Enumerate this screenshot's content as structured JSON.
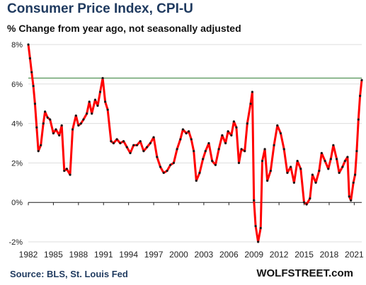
{
  "header": {
    "title": "Consumer Price Index, CPI-U",
    "subtitle": "% Change from year ago, not seasonally adjusted"
  },
  "footer": {
    "source": "Source: BLS, St. Louis Fed",
    "brand": "WOLFSTREET.com"
  },
  "colors": {
    "line": "#ff0000",
    "markers": "#1a1a1a",
    "reference_line": "#2e7d32",
    "gridline": "#dddddd",
    "title": "#1f3a5f"
  },
  "chart_data": {
    "type": "line",
    "title": "Consumer Price Index, CPI-U",
    "subtitle": "% Change from year ago, not seasonally adjusted",
    "xlabel": "",
    "ylabel": "",
    "xlim": [
      1982.0,
      2021.9
    ],
    "ylim": [
      -2,
      8
    ],
    "y_ticks": [
      8,
      6,
      4,
      2,
      0,
      -2
    ],
    "y_tick_labels": [
      "8%",
      "6%",
      "4%",
      "2%",
      "0%",
      "-2%"
    ],
    "x_ticks": [
      1982,
      1985,
      1988,
      1991,
      1994,
      1997,
      2000,
      2003,
      2006,
      2009,
      2012,
      2015,
      2018,
      2021
    ],
    "x_tick_labels": [
      "1982",
      "1985",
      "1988",
      "1991",
      "1994",
      "1997",
      "2000",
      "2003",
      "2006",
      "2009",
      "2012",
      "2015",
      "2018",
      "2021"
    ],
    "grid": "horizontal",
    "reference_line_y": 6.3,
    "series": [
      {
        "x": [
          1982.0,
          1982.2,
          1982.4,
          1982.6,
          1982.8,
          1983.0,
          1983.2,
          1983.5,
          1983.8,
          1984.0,
          1984.3,
          1984.6,
          1985.0,
          1985.3,
          1985.7,
          1986.0,
          1986.3,
          1986.6,
          1987.0,
          1987.3,
          1987.7,
          1988.0,
          1988.3,
          1988.6,
          1989.0,
          1989.3,
          1989.6,
          1990.0,
          1990.3,
          1990.6,
          1990.9,
          1991.2,
          1991.5,
          1991.9,
          1992.2,
          1992.6,
          1993.0,
          1993.4,
          1993.8,
          1994.2,
          1994.6,
          1995.0,
          1995.4,
          1995.8,
          1996.2,
          1996.6,
          1997.0,
          1997.4,
          1997.8,
          1998.2,
          1998.6,
          1999.0,
          1999.4,
          1999.8,
          2000.2,
          2000.5,
          2000.9,
          2001.2,
          2001.5,
          2001.8,
          2002.1,
          2002.5,
          2002.9,
          2003.2,
          2003.6,
          2004.0,
          2004.4,
          2004.8,
          2005.2,
          2005.6,
          2005.9,
          2006.3,
          2006.6,
          2006.9,
          2007.2,
          2007.5,
          2007.9,
          2008.2,
          2008.6,
          2008.8,
          2009.0,
          2009.2,
          2009.5,
          2009.8,
          2010.0,
          2010.3,
          2010.6,
          2011.0,
          2011.4,
          2011.8,
          2012.2,
          2012.6,
          2013.0,
          2013.4,
          2013.8,
          2014.2,
          2014.6,
          2015.0,
          2015.3,
          2015.7,
          2016.0,
          2016.4,
          2016.8,
          2017.1,
          2017.5,
          2017.9,
          2018.2,
          2018.5,
          2018.9,
          2019.2,
          2019.6,
          2019.9,
          2020.2,
          2020.4,
          2020.6,
          2020.9,
          2021.1,
          2021.3,
          2021.5,
          2021.7,
          2021.9
        ],
        "y": [
          8.0,
          7.3,
          6.6,
          5.9,
          5.0,
          3.8,
          2.6,
          2.9,
          4.0,
          4.6,
          4.3,
          4.2,
          3.5,
          3.7,
          3.4,
          3.9,
          1.6,
          1.7,
          1.4,
          3.7,
          4.4,
          3.9,
          4.0,
          4.2,
          4.5,
          5.1,
          4.5,
          5.2,
          4.9,
          5.6,
          6.3,
          5.1,
          4.7,
          3.1,
          3.0,
          3.2,
          3.0,
          3.1,
          2.8,
          2.5,
          2.9,
          2.9,
          3.1,
          2.6,
          2.8,
          3.0,
          3.3,
          2.3,
          1.8,
          1.5,
          1.6,
          1.9,
          2.0,
          2.7,
          3.2,
          3.7,
          3.5,
          3.6,
          3.2,
          2.6,
          1.1,
          1.5,
          2.2,
          2.6,
          3.0,
          2.1,
          1.9,
          2.7,
          3.4,
          3.0,
          3.6,
          3.4,
          4.1,
          3.8,
          2.0,
          2.7,
          2.6,
          4.0,
          5.0,
          5.6,
          0.1,
          -1.2,
          -2.0,
          -1.3,
          2.1,
          2.7,
          1.1,
          1.6,
          2.9,
          3.9,
          3.5,
          2.7,
          1.5,
          1.8,
          1.0,
          2.1,
          1.7,
          0.0,
          -0.1,
          0.2,
          1.4,
          1.0,
          1.6,
          2.5,
          2.1,
          1.7,
          2.2,
          2.9,
          2.2,
          1.5,
          1.8,
          2.1,
          2.3,
          0.3,
          0.1,
          1.0,
          1.4,
          2.6,
          4.2,
          5.4,
          6.2
        ]
      }
    ]
  }
}
